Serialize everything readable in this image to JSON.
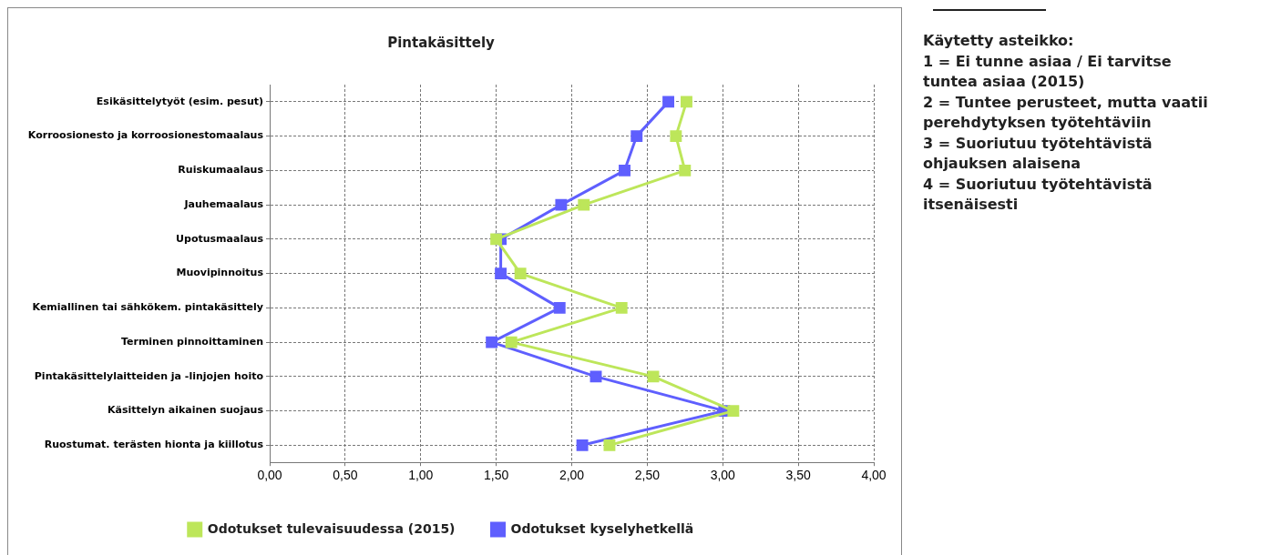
{
  "chart_data": {
    "type": "line",
    "title": "Pintakäsittely",
    "orientation": "horizontal",
    "categories": [
      "Esikäsittelytyöt (esim. pesut)",
      "Korroosionesto ja korroosionestomaalaus",
      "Ruiskumaalaus",
      "Jauhemaalaus",
      "Upotusmaalaus",
      "Muovipinnoitus",
      "Kemiallinen tai sähkökem. pintakäsittely",
      "Terminen pinnoittaminen",
      "Pintakäsittelylaitteiden ja -linjojen hoito",
      "Käsittelyn aikainen suojaus",
      "Ruostumat. terästen hionta ja kiillotus"
    ],
    "series": [
      {
        "name": "Odotukset kyselyhetkellä",
        "color": "#5f5ffe",
        "values": [
          2.64,
          2.43,
          2.35,
          1.93,
          1.53,
          1.53,
          1.92,
          1.47,
          2.16,
          3.01,
          2.07
        ]
      },
      {
        "name": "Odotukset tulevaisuudessa (2015)",
        "color": "#bde65a",
        "values": [
          2.76,
          2.69,
          2.75,
          2.08,
          1.5,
          1.66,
          2.33,
          1.6,
          2.54,
          3.07,
          2.25
        ]
      }
    ],
    "xlim": [
      0,
      4
    ],
    "xticks": [
      {
        "value": 0,
        "label": "0,00"
      },
      {
        "value": 0.5,
        "label": "0,50"
      },
      {
        "value": 1,
        "label": "1,00"
      },
      {
        "value": 1.5,
        "label": "1,50"
      },
      {
        "value": 2,
        "label": "2,00"
      },
      {
        "value": 2.5,
        "label": "2,50"
      },
      {
        "value": 3,
        "label": "3,00"
      },
      {
        "value": 3.5,
        "label": "3,50"
      },
      {
        "value": 4,
        "label": "4,00"
      }
    ],
    "grid": true,
    "legend": "bottom",
    "marker": "square",
    "line_style": "solid",
    "annotations": [
      "Käytetty asteikko:",
      "1 = Ei tunne asiaa / Ei tarvitse tuntea asiaa (2015)",
      "2 = Tuntee perusteet, mutta vaatii perehdytyksen työtehtäviin",
      "3 = Suoriutuu työtehtävistä ohjauksen alaisena",
      "4 = Suoriutuu työtehtävistä itsenäisesti"
    ]
  }
}
